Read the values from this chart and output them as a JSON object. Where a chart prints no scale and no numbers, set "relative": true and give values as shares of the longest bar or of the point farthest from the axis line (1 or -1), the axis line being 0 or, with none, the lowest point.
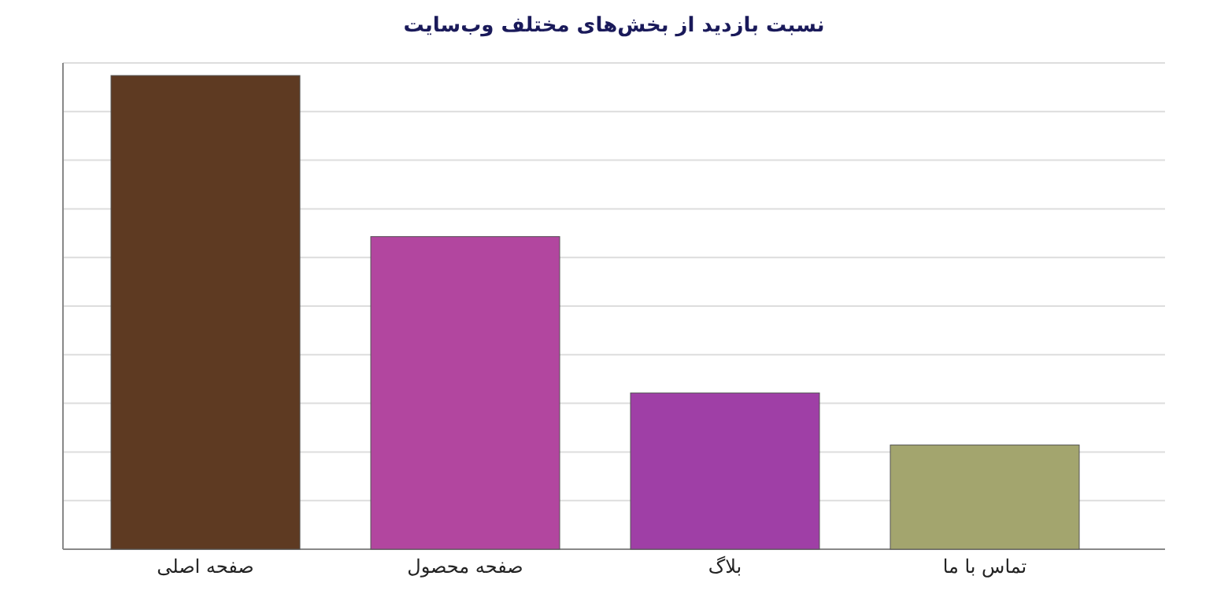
{
  "chart_data": {
    "type": "bar",
    "title": "نسبت بازدید از بخش‌های مختلف وب‌سایت",
    "categories": [
      "صفحه اصلی",
      "صفحه محصول",
      "بلاگ",
      "تماس با ما"
    ],
    "values": [
      1,
      0.66,
      0.33,
      0.22
    ],
    "colors": [
      "#5e3a22",
      "#b2469f",
      "#9f3fa6",
      "#a3a56e"
    ],
    "relative": true,
    "grid": true
  }
}
